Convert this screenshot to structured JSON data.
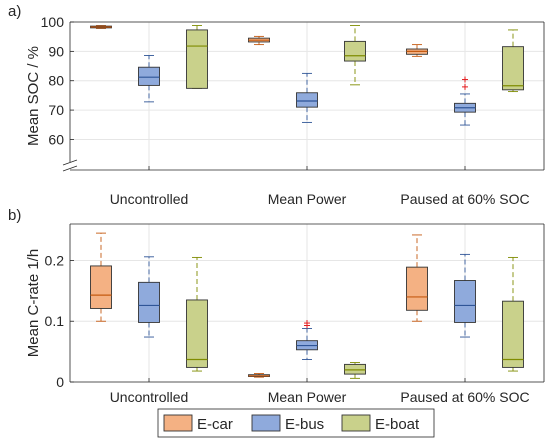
{
  "chart_data": [
    {
      "type": "box",
      "panel_label": "a)",
      "ylabel": "Mean SOC / %",
      "ylim": [
        53,
        100
      ],
      "yticks": [
        60,
        70,
        80,
        90,
        100
      ],
      "axis_break": true,
      "grid": true,
      "categories": [
        "Uncontrolled",
        "Mean Power",
        "Paused at 60% SOC"
      ],
      "series": [
        {
          "name": "E-car",
          "color": "#f4b183",
          "median_color": "#c55a11",
          "boxes": [
            {
              "whisker_low": 97.8,
              "q1": 98.0,
              "median": 98.3,
              "q3": 98.6,
              "whisker_high": 98.8,
              "outliers": []
            },
            {
              "whisker_low": 92.3,
              "q1": 93.2,
              "median": 93.8,
              "q3": 94.5,
              "whisker_high": 95.1,
              "outliers": []
            },
            {
              "whisker_low": 88.3,
              "q1": 89.0,
              "median": 90.0,
              "q3": 90.8,
              "whisker_high": 92.3,
              "outliers": []
            }
          ]
        },
        {
          "name": "E-bus",
          "color": "#8faadc",
          "median_color": "#2f5597",
          "boxes": [
            {
              "whisker_low": 72.8,
              "q1": 78.4,
              "median": 81.2,
              "q3": 84.6,
              "whisker_high": 88.6,
              "outliers": []
            },
            {
              "whisker_low": 65.8,
              "q1": 71.0,
              "median": 73.1,
              "q3": 75.9,
              "whisker_high": 82.5,
              "outliers": []
            },
            {
              "whisker_low": 64.9,
              "q1": 69.3,
              "median": 70.8,
              "q3": 72.3,
              "whisker_high": 75.5,
              "outliers": [
                77.9,
                80.4
              ]
            }
          ]
        },
        {
          "name": "E-boat",
          "color": "#c9d18b",
          "median_color": "#7f8c00",
          "boxes": [
            {
              "whisker_low": 77.4,
              "q1": 77.4,
              "median": 91.8,
              "q3": 97.3,
              "whisker_high": 98.8,
              "outliers": []
            },
            {
              "whisker_low": 78.6,
              "q1": 86.7,
              "median": 88.5,
              "q3": 93.4,
              "whisker_high": 98.8,
              "outliers": []
            },
            {
              "whisker_low": 76.3,
              "q1": 76.9,
              "median": 78.3,
              "q3": 91.6,
              "whisker_high": 97.3,
              "outliers": []
            }
          ]
        }
      ]
    },
    {
      "type": "box",
      "panel_label": "b)",
      "ylabel": "Mean C-rate 1/h",
      "ylim": [
        0,
        0.26
      ],
      "yticks": [
        0,
        0.1,
        0.2
      ],
      "grid": true,
      "categories": [
        "Uncontrolled",
        "Mean Power",
        "Paused at 60% SOC"
      ],
      "series": [
        {
          "name": "E-car",
          "color": "#f4b183",
          "median_color": "#c55a11",
          "boxes": [
            {
              "whisker_low": 0.1,
              "q1": 0.121,
              "median": 0.143,
              "q3": 0.191,
              "whisker_high": 0.245,
              "outliers": []
            },
            {
              "whisker_low": 0.008,
              "q1": 0.009,
              "median": 0.01,
              "q3": 0.012,
              "whisker_high": 0.014,
              "outliers": []
            },
            {
              "whisker_low": 0.1,
              "q1": 0.118,
              "median": 0.14,
              "q3": 0.189,
              "whisker_high": 0.242,
              "outliers": []
            }
          ]
        },
        {
          "name": "E-bus",
          "color": "#8faadc",
          "median_color": "#2f5597",
          "boxes": [
            {
              "whisker_low": 0.074,
              "q1": 0.098,
              "median": 0.126,
              "q3": 0.164,
              "whisker_high": 0.206,
              "outliers": []
            },
            {
              "whisker_low": 0.037,
              "q1": 0.053,
              "median": 0.06,
              "q3": 0.068,
              "whisker_high": 0.088,
              "outliers": [
                0.093,
                0.097
              ]
            },
            {
              "whisker_low": 0.074,
              "q1": 0.098,
              "median": 0.126,
              "q3": 0.167,
              "whisker_high": 0.21,
              "outliers": []
            }
          ]
        },
        {
          "name": "E-boat",
          "color": "#c9d18b",
          "median_color": "#7f8c00",
          "boxes": [
            {
              "whisker_low": 0.018,
              "q1": 0.024,
              "median": 0.037,
              "q3": 0.135,
              "whisker_high": 0.205,
              "outliers": []
            },
            {
              "whisker_low": 0.006,
              "q1": 0.013,
              "median": 0.02,
              "q3": 0.029,
              "whisker_high": 0.032,
              "outliers": []
            },
            {
              "whisker_low": 0.018,
              "q1": 0.024,
              "median": 0.037,
              "q3": 0.133,
              "whisker_high": 0.205,
              "outliers": []
            }
          ]
        }
      ]
    }
  ],
  "legend": {
    "placement": "bottom-center",
    "items": [
      "E-car",
      "E-bus",
      "E-boat"
    ]
  },
  "colors": {
    "grid": "#e6e6e6",
    "axis": "#262626",
    "outlier": "#e31a1c"
  }
}
